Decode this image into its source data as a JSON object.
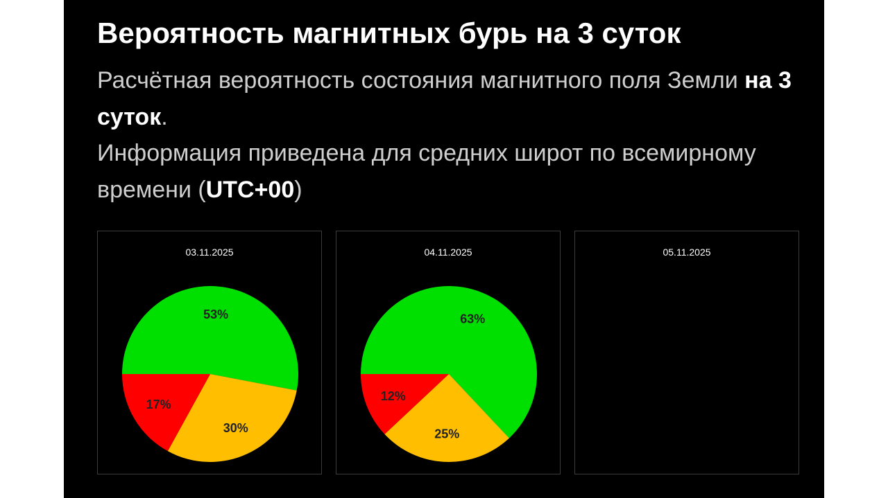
{
  "header": {
    "title": "Вероятность магнитных бурь на 3 суток",
    "p1_text": "Расчётная вероятность состояния магнитного поля Земли ",
    "p1_bold": "на 3 суток",
    "p1_end": ".",
    "p2_text": "Информация приведена для средних широт по всемирному времени (",
    "p2_bold": "UTC+00",
    "p2_end": ")"
  },
  "colors": {
    "green": "#00e000",
    "yellow": "#ffbf00",
    "red": "#ff0000"
  },
  "chart_data": [
    {
      "type": "pie",
      "date": "03.11.2025",
      "slices": [
        {
          "value": 53,
          "label": "53%",
          "color": "#00e000"
        },
        {
          "value": 30,
          "label": "30%",
          "color": "#ffbf00"
        },
        {
          "value": 17,
          "label": "17%",
          "color": "#ff0000"
        }
      ]
    },
    {
      "type": "pie",
      "date": "04.11.2025",
      "slices": [
        {
          "value": 63,
          "label": "63%",
          "color": "#00e000"
        },
        {
          "value": 25,
          "label": "25%",
          "color": "#ffbf00"
        },
        {
          "value": 12,
          "label": "12%",
          "color": "#ff0000"
        }
      ]
    },
    {
      "type": "pie",
      "date": "05.11.2025",
      "slices": []
    }
  ]
}
